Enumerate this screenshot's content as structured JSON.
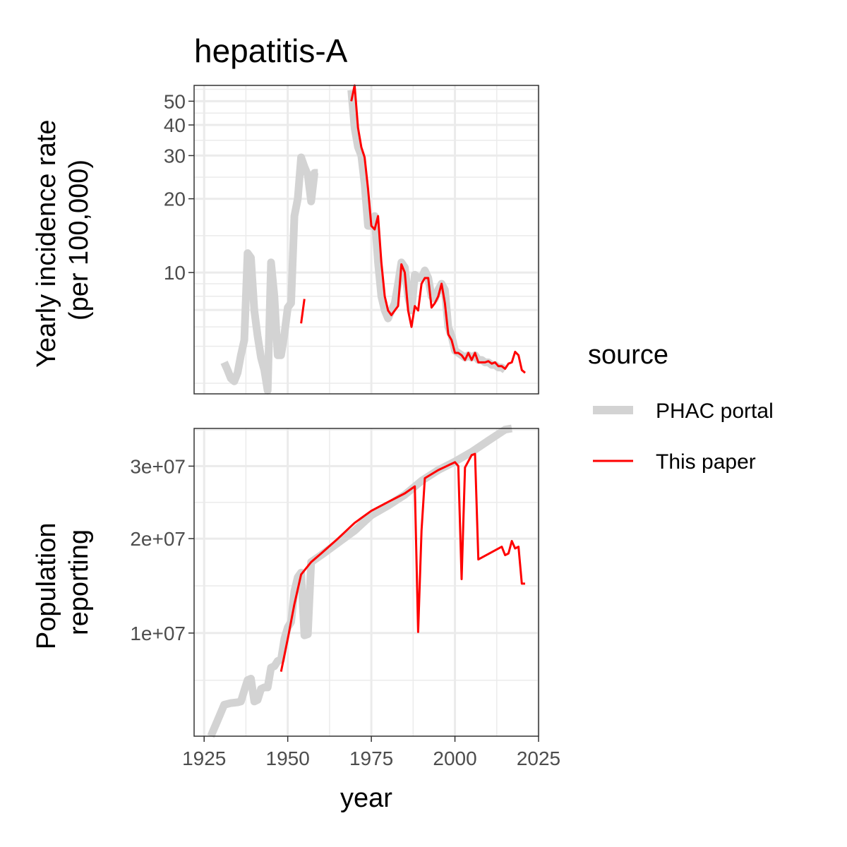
{
  "title": "hepatitis-A",
  "xlabel": "year",
  "legend": {
    "title": "source",
    "position": "right",
    "entries": [
      {
        "label": "PHAC portal",
        "color": "#d3d3d3"
      },
      {
        "label": "This paper",
        "color": "#ff0000"
      }
    ]
  },
  "chart_data": [
    {
      "type": "line",
      "ylabel": [
        "Yearly incidence rate",
        "(per 100,000)"
      ],
      "xlim": [
        1922,
        2025
      ],
      "x_ticks": [
        1925,
        1950,
        1975,
        2000,
        2025
      ],
      "y_scale": "log",
      "ylim": [
        3.2,
        58
      ],
      "y_ticks": [
        10,
        20,
        30,
        40,
        50
      ],
      "y_tick_labels": [
        "10",
        "20",
        "30",
        "40",
        "50"
      ],
      "grid": true,
      "series": [
        {
          "name": "PHAC portal",
          "color": "#d3d3d3",
          "segments": [
            [
              [
                1931,
                4.3
              ],
              [
                1932,
                4.0
              ],
              [
                1933,
                3.7
              ],
              [
                1934,
                3.6
              ],
              [
                1935,
                3.9
              ],
              [
                1936,
                4.6
              ],
              [
                1937,
                5.3
              ],
              [
                1938,
                12.0
              ],
              [
                1939,
                11.5
              ],
              [
                1940,
                7.0
              ],
              [
                1941,
                5.5
              ],
              [
                1942,
                4.5
              ],
              [
                1943,
                4.0
              ],
              [
                1944,
                3.3
              ],
              [
                1945,
                11.0
              ],
              [
                1946,
                8.0
              ],
              [
                1947,
                4.6
              ],
              [
                1948,
                4.6
              ],
              [
                1949,
                5.6
              ],
              [
                1950,
                7.2
              ],
              [
                1951,
                7.5
              ],
              [
                1952,
                17.0
              ],
              [
                1953,
                20.0
              ],
              [
                1954,
                29.5
              ],
              [
                1955,
                27.0
              ],
              [
                1956,
                25.0
              ],
              [
                1957,
                19.5
              ],
              [
                1958,
                25.5
              ],
              [
                1959,
                25.5
              ]
            ],
            [
              [
                1969,
                55.5
              ],
              [
                1970,
                39.0
              ],
              [
                1971,
                32.5
              ],
              [
                1972,
                30.0
              ],
              [
                1973,
                23.0
              ],
              [
                1974,
                15.5
              ],
              [
                1975,
                15.5
              ],
              [
                1976,
                17.0
              ],
              [
                1977,
                11.0
              ],
              [
                1978,
                8.0
              ],
              [
                1979,
                7.0
              ],
              [
                1980,
                6.5
              ],
              [
                1981,
                7.0
              ],
              [
                1982,
                7.5
              ],
              [
                1983,
                9.0
              ],
              [
                1984,
                11.0
              ],
              [
                1985,
                10.5
              ],
              [
                1986,
                8.0
              ],
              [
                1987,
                7.0
              ],
              [
                1988,
                9.8
              ],
              [
                1989,
                9.5
              ],
              [
                1990,
                9.5
              ],
              [
                1991,
                10.2
              ],
              [
                1992,
                9.5
              ],
              [
                1993,
                8.0
              ],
              [
                1994,
                7.8
              ],
              [
                1995,
                8.5
              ],
              [
                1996,
                9.0
              ],
              [
                1997,
                8.5
              ],
              [
                1998,
                6.0
              ],
              [
                1999,
                5.5
              ],
              [
                2000,
                4.8
              ],
              [
                2001,
                4.7
              ],
              [
                2002,
                4.6
              ],
              [
                2003,
                4.5
              ],
              [
                2004,
                4.6
              ],
              [
                2005,
                4.5
              ],
              [
                2006,
                4.6
              ],
              [
                2007,
                4.4
              ],
              [
                2008,
                4.4
              ],
              [
                2009,
                4.3
              ],
              [
                2010,
                4.3
              ],
              [
                2011,
                4.2
              ],
              [
                2012,
                4.2
              ],
              [
                2013,
                4.1
              ],
              [
                2014,
                4.1
              ],
              [
                2015,
                4.0
              ]
            ]
          ]
        },
        {
          "name": "This paper",
          "color": "#ff0000",
          "segments": [
            [
              [
                1954,
                6.2
              ],
              [
                1955,
                7.8
              ]
            ],
            [
              [
                1969,
                50.0
              ],
              [
                1970,
                58.0
              ],
              [
                1971,
                39.0
              ],
              [
                1972,
                32.5
              ],
              [
                1973,
                29.5
              ],
              [
                1974,
                22.0
              ],
              [
                1975,
                15.5
              ],
              [
                1976,
                15.0
              ],
              [
                1977,
                17.0
              ],
              [
                1978,
                11.0
              ],
              [
                1979,
                8.0
              ],
              [
                1980,
                7.0
              ],
              [
                1981,
                6.7
              ],
              [
                1982,
                7.0
              ],
              [
                1983,
                7.3
              ],
              [
                1984,
                10.8
              ],
              [
                1985,
                10.0
              ],
              [
                1986,
                7.0
              ],
              [
                1987,
                6.0
              ],
              [
                1988,
                7.3
              ],
              [
                1989,
                7.0
              ],
              [
                1990,
                9.0
              ],
              [
                1991,
                9.5
              ],
              [
                1992,
                9.5
              ],
              [
                1993,
                7.2
              ],
              [
                1994,
                7.5
              ],
              [
                1995,
                8.0
              ],
              [
                1996,
                9.0
              ],
              [
                1997,
                7.5
              ],
              [
                1998,
                5.6
              ],
              [
                1999,
                5.3
              ],
              [
                2000,
                4.7
              ],
              [
                2001,
                4.7
              ],
              [
                2002,
                4.6
              ],
              [
                2003,
                4.4
              ],
              [
                2004,
                4.7
              ],
              [
                2005,
                4.4
              ],
              [
                2006,
                4.7
              ],
              [
                2007,
                4.3
              ],
              [
                2008,
                4.3
              ],
              [
                2009,
                4.3
              ],
              [
                2010,
                4.35
              ],
              [
                2011,
                4.25
              ],
              [
                2012,
                4.3
              ],
              [
                2013,
                4.15
              ],
              [
                2014,
                4.15
              ],
              [
                2015,
                4.05
              ],
              [
                2016,
                4.25
              ],
              [
                2017,
                4.3
              ],
              [
                2018,
                4.75
              ],
              [
                2019,
                4.6
              ],
              [
                2020,
                4.0
              ],
              [
                2021,
                3.9
              ]
            ]
          ]
        }
      ]
    },
    {
      "type": "line",
      "ylabel": [
        "Population",
        "reporting"
      ],
      "xlim": [
        1922,
        2025
      ],
      "x_ticks": [
        1925,
        1950,
        1975,
        2000,
        2025
      ],
      "x_tick_labels": [
        "1925",
        "1950",
        "1975",
        "2000",
        "2025"
      ],
      "y_scale": "sqrt",
      "ylim": [
        3000000,
        36000000
      ],
      "y_ticks": [
        10000000,
        20000000,
        30000000
      ],
      "y_tick_labels": [
        "1e+07",
        "2e+07",
        "3e+07"
      ],
      "grid": true,
      "series": [
        {
          "name": "PHAC portal",
          "color": "#d3d3d3",
          "segments": [
            [
              [
                1927,
                3000000
              ],
              [
                1929,
                3800000
              ],
              [
                1931,
                4700000
              ],
              [
                1933,
                4800000
              ],
              [
                1935,
                4850000
              ],
              [
                1936,
                4900000
              ],
              [
                1937,
                5600000
              ],
              [
                1938,
                6300000
              ],
              [
                1939,
                6400000
              ],
              [
                1940,
                4900000
              ],
              [
                1941,
                5000000
              ],
              [
                1942,
                5700000
              ],
              [
                1943,
                5800000
              ],
              [
                1944,
                5800000
              ],
              [
                1945,
                7200000
              ],
              [
                1946,
                7300000
              ],
              [
                1947,
                7700000
              ],
              [
                1948,
                7800000
              ],
              [
                1949,
                9500000
              ],
              [
                1950,
                10500000
              ],
              [
                1951,
                11000000
              ],
              [
                1952,
                14000000
              ],
              [
                1953,
                15500000
              ],
              [
                1954,
                16000000
              ],
              [
                1955,
                9800000
              ],
              [
                1956,
                9900000
              ],
              [
                1957,
                17200000
              ],
              [
                1960,
                18000000
              ],
              [
                1970,
                21000000
              ],
              [
                1975,
                23000000
              ],
              [
                1980,
                24300000
              ],
              [
                1985,
                25800000
              ],
              [
                1990,
                27800000
              ],
              [
                1995,
                29400000
              ],
              [
                2000,
                30700000
              ],
              [
                2005,
                32200000
              ],
              [
                2010,
                34000000
              ],
              [
                2015,
                35800000
              ],
              [
                2017,
                36800000
              ]
            ]
          ]
        },
        {
          "name": "This paper",
          "color": "#ff0000",
          "segments": [
            [
              [
                1948,
                6900000
              ],
              [
                1950,
                9500000
              ],
              [
                1952,
                12700000
              ],
              [
                1954,
                15800000
              ],
              [
                1957,
                17200000
              ],
              [
                1960,
                18200000
              ],
              [
                1965,
                20000000
              ],
              [
                1970,
                22000000
              ],
              [
                1975,
                23600000
              ],
              [
                1980,
                24800000
              ],
              [
                1985,
                26000000
              ],
              [
                1988,
                27000000
              ],
              [
                1989,
                10100000
              ],
              [
                1990,
                21000000
              ],
              [
                1991,
                28200000
              ],
              [
                1995,
                29400000
              ],
              [
                2000,
                30600000
              ],
              [
                2001,
                30000000
              ],
              [
                2002,
                15300000
              ],
              [
                2003,
                29800000
              ],
              [
                2005,
                31700000
              ],
              [
                2006,
                31900000
              ],
              [
                2007,
                17500000
              ],
              [
                2014,
                19000000
              ],
              [
                2015,
                18000000
              ],
              [
                2016,
                18200000
              ],
              [
                2017,
                19700000
              ],
              [
                2018,
                18800000
              ],
              [
                2019,
                19000000
              ],
              [
                2020,
                14800000
              ],
              [
                2021,
                14800000
              ]
            ]
          ]
        }
      ]
    }
  ]
}
